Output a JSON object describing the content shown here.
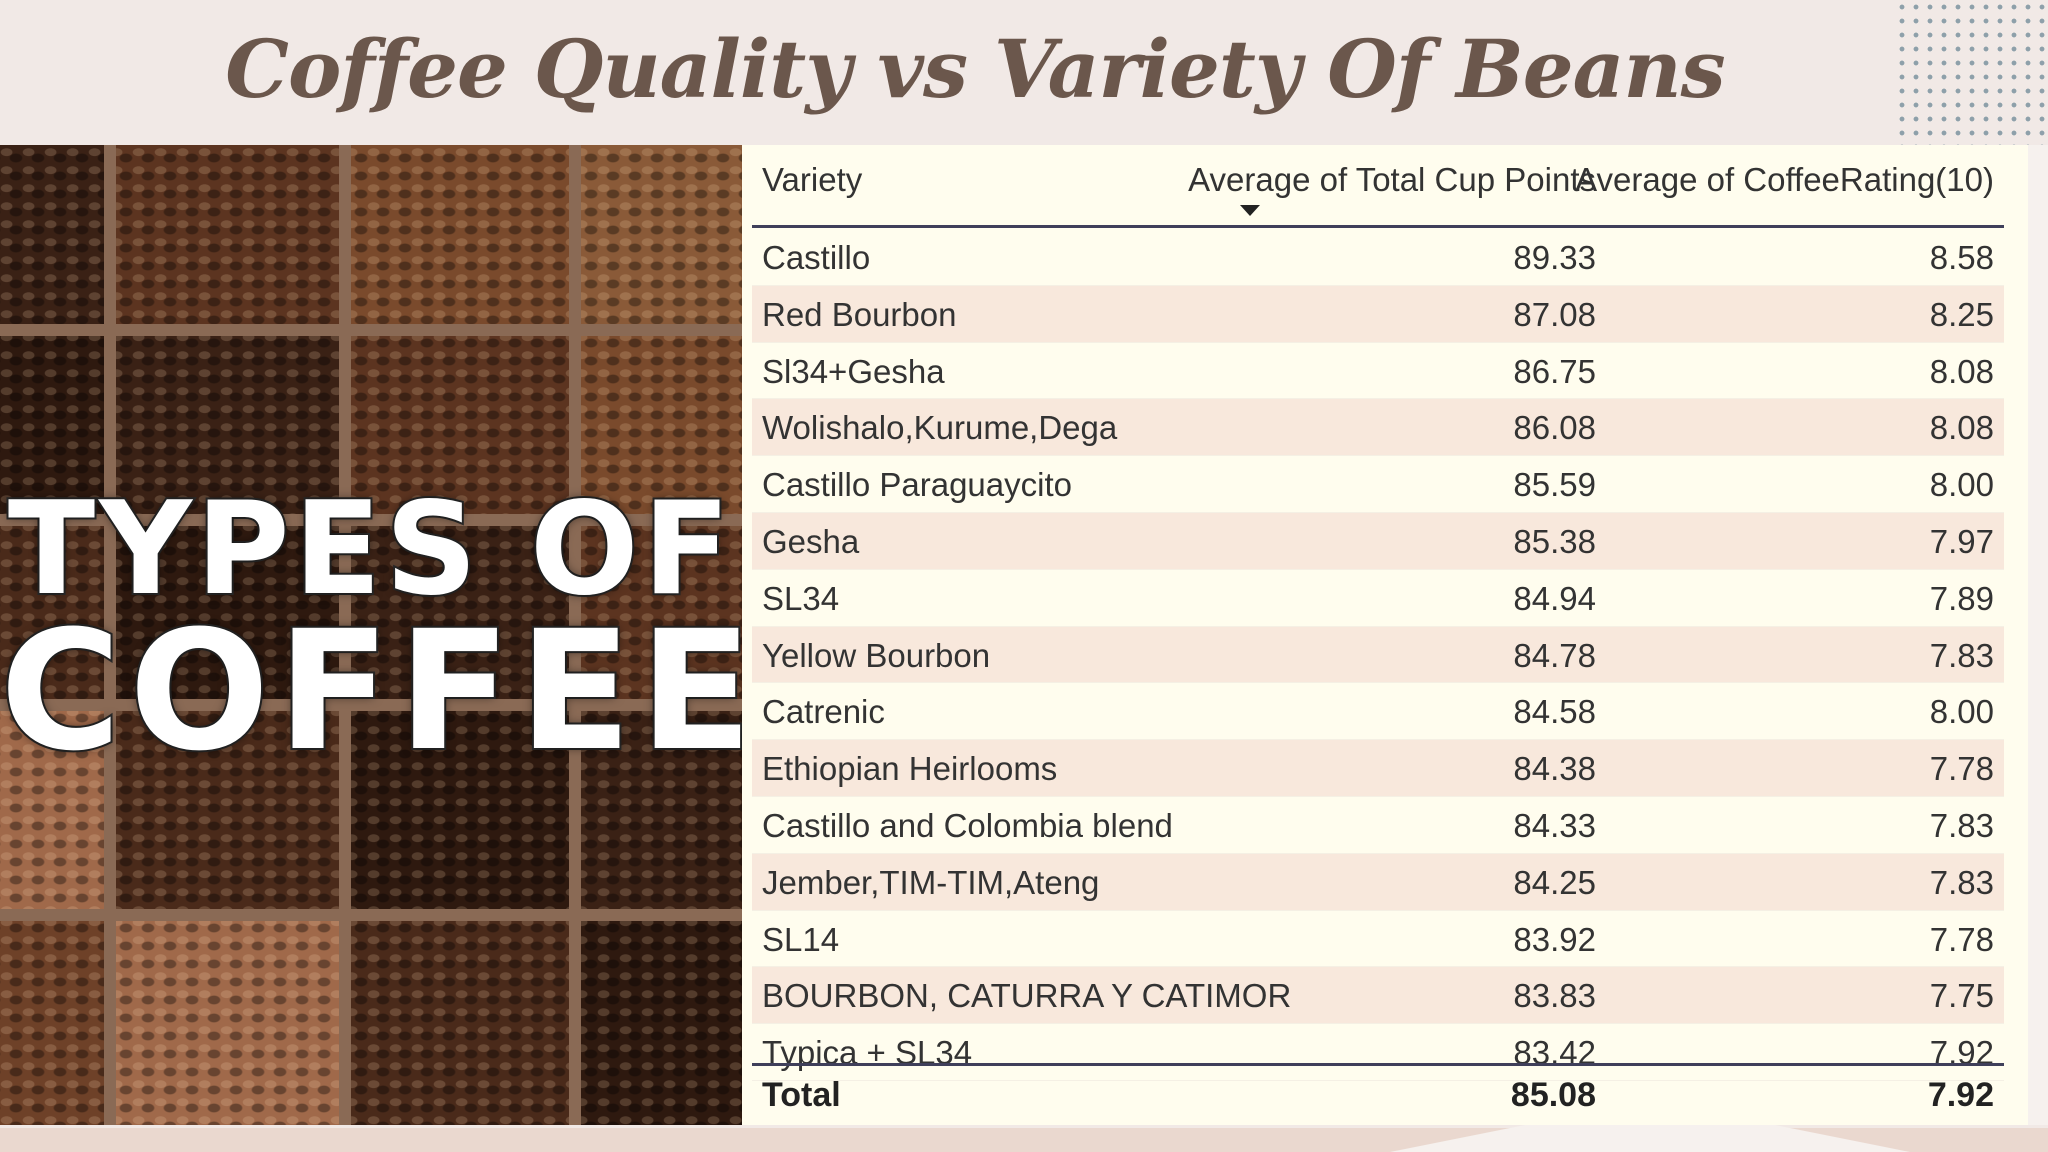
{
  "title": "Coffee Quality vs Variety Of Beans",
  "image_panel": {
    "overlay_line1": "TYPES OF",
    "overlay_line2": "COFFEE"
  },
  "table": {
    "columns": [
      "Variety",
      "Average of Total Cup Points",
      "Average of CoffeeRating(10)"
    ],
    "sorted_column": "Average of Total Cup Points",
    "sort_direction": "descending",
    "rows": [
      {
        "variety": "Castillo",
        "cup_points": "89.33",
        "rating": "8.58"
      },
      {
        "variety": "Red Bourbon",
        "cup_points": "87.08",
        "rating": "8.25"
      },
      {
        "variety": "Sl34+Gesha",
        "cup_points": "86.75",
        "rating": "8.08"
      },
      {
        "variety": "Wolishalo,Kurume,Dega",
        "cup_points": "86.08",
        "rating": "8.08"
      },
      {
        "variety": "Castillo Paraguaycito",
        "cup_points": "85.59",
        "rating": "8.00"
      },
      {
        "variety": "Gesha",
        "cup_points": "85.38",
        "rating": "7.97"
      },
      {
        "variety": "SL34",
        "cup_points": "84.94",
        "rating": "7.89"
      },
      {
        "variety": "Yellow Bourbon",
        "cup_points": "84.78",
        "rating": "7.83"
      },
      {
        "variety": "Catrenic",
        "cup_points": "84.58",
        "rating": "8.00"
      },
      {
        "variety": "Ethiopian Heirlooms",
        "cup_points": "84.38",
        "rating": "7.78"
      },
      {
        "variety": "Castillo and Colombia blend",
        "cup_points": "84.33",
        "rating": "7.83"
      },
      {
        "variety": "Jember,TIM-TIM,Ateng",
        "cup_points": "84.25",
        "rating": "7.83"
      },
      {
        "variety": "SL14",
        "cup_points": "83.92",
        "rating": "7.78"
      },
      {
        "variety": "BOURBON, CATURRA Y CATIMOR",
        "cup_points": "83.83",
        "rating": "7.75"
      },
      {
        "variety": "Typica + SL34",
        "cup_points": "83.42",
        "rating": "7.92"
      }
    ],
    "total": {
      "label": "Total",
      "cup_points": "85.08",
      "rating": "7.92"
    }
  },
  "colors": {
    "background": "#f1e9e6",
    "title": "#6b574c",
    "table_background": "#fffdee",
    "row_alt": "#f8e8dc",
    "header_rule": "#3f3f5a"
  }
}
